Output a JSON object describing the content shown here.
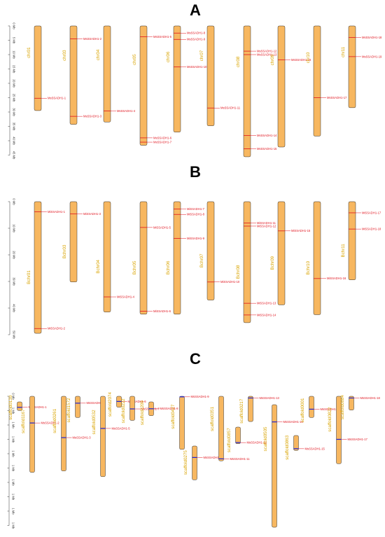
{
  "panels": [
    {
      "label": "A",
      "axis_ticks": [
        "0 Mb",
        "5 Mb",
        "10 Mb",
        "15 Mb",
        "20 Mb",
        "25 Mb",
        "30 Mb",
        "35 Mb",
        "40 Mb",
        "45 Mb"
      ],
      "axis_max_mb": 45,
      "gene_color": "#e0141e",
      "chromosomes": [
        {
          "name": "chr01",
          "length_mb": 29.5,
          "genes": [
            {
              "name": "MsSSADH1-1",
              "pos_mb": 25.2
            }
          ]
        },
        {
          "name": "chr03",
          "length_mb": 34.3,
          "genes": [
            {
              "name": "MsSSADH1-2",
              "pos_mb": 4.5
            },
            {
              "name": "MsSSADH1-3",
              "pos_mb": 31.5
            }
          ]
        },
        {
          "name": "chr04",
          "length_mb": 33.5,
          "genes": [
            {
              "name": "MsSSADH1-4",
              "pos_mb": 29.6
            }
          ]
        },
        {
          "name": "chr05",
          "length_mb": 41.6,
          "genes": [
            {
              "name": "MsSSADH1-5",
              "pos_mb": 3.8
            },
            {
              "name": "MsSSADH1-6",
              "pos_mb": 39.0
            },
            {
              "name": "MsSSADH1-7",
              "pos_mb": 40.5
            }
          ]
        },
        {
          "name": "chr06",
          "length_mb": 37.0,
          "genes": [
            {
              "name": "MsSSADH1-8",
              "pos_mb": 2.5
            },
            {
              "name": "MsSSADH1-9",
              "pos_mb": 4.7
            },
            {
              "name": "MsSSADH1-10",
              "pos_mb": 14.3
            }
          ]
        },
        {
          "name": "chr07",
          "length_mb": 34.8,
          "genes": [
            {
              "name": "MsSSADH1-11",
              "pos_mb": 28.6
            }
          ]
        },
        {
          "name": "chr08",
          "length_mb": 45.6,
          "genes": [
            {
              "name": "MsSSADH1-12",
              "pos_mb": 8.8
            },
            {
              "name": "MsSSADH1-13",
              "pos_mb": 10.0
            },
            {
              "name": "MsSSADH1-14",
              "pos_mb": 38.2
            },
            {
              "name": "MsSSADH1-15",
              "pos_mb": 42.8
            }
          ]
        },
        {
          "name": "chr09",
          "length_mb": 42.2,
          "genes": [
            {
              "name": "MsSSADH1-16",
              "pos_mb": 11.8
            }
          ]
        },
        {
          "name": "chr10",
          "length_mb": 38.4,
          "genes": [
            {
              "name": "MsSSADH1-17",
              "pos_mb": 25.0
            }
          ]
        },
        {
          "name": "chr11",
          "length_mb": 28.5,
          "genes": [
            {
              "name": "MsSSADH1-18",
              "pos_mb": 4.0
            },
            {
              "name": "MsSSADH1-19",
              "pos_mb": 10.7
            }
          ]
        }
      ]
    },
    {
      "label": "B",
      "axis_ticks": [
        "0 Mb",
        "10 Mb",
        "20 Mb",
        "30 Mb",
        "40 Mb",
        "50 Mb"
      ],
      "axis_max_mb": 50,
      "gene_color": "#e0141e",
      "chromosomes": [
        {
          "name": "Bchr01",
          "length_mb": 49.5,
          "genes": [
            {
              "name": "MiSSADH1-1",
              "pos_mb": 3.8
            },
            {
              "name": "MiSSADH1-2",
              "pos_mb": 47.7
            }
          ]
        },
        {
          "name": "Bchr03",
          "length_mb": 30.2,
          "genes": [
            {
              "name": "MiSSADH1-3",
              "pos_mb": 4.6
            }
          ]
        },
        {
          "name": "Bchr04",
          "length_mb": 41.5,
          "genes": [
            {
              "name": "MiSSADH1-4",
              "pos_mb": 35.8
            }
          ]
        },
        {
          "name": "Bchr05",
          "length_mb": 42.3,
          "genes": [
            {
              "name": "MiSSADH1-5",
              "pos_mb": 9.7
            },
            {
              "name": "MiSSADH1-6",
              "pos_mb": 41.2
            }
          ]
        },
        {
          "name": "Bchr06",
          "length_mb": 42.3,
          "genes": [
            {
              "name": "MiSSADH1-7",
              "pos_mb": 2.8
            },
            {
              "name": "MiSSADH1-8",
              "pos_mb": 4.8
            },
            {
              "name": "MiSSADH1-9",
              "pos_mb": 13.8
            }
          ]
        },
        {
          "name": "Bchr07",
          "length_mb": 37.0,
          "genes": [
            {
              "name": "MiSSADH1-10",
              "pos_mb": 30.2
            }
          ]
        },
        {
          "name": "Bchr08",
          "length_mb": 45.5,
          "genes": [
            {
              "name": "MiSSADH1-11",
              "pos_mb": 8.0
            },
            {
              "name": "MiSSADH1-12",
              "pos_mb": 9.2
            },
            {
              "name": "MiSSADH1-13",
              "pos_mb": 38.2
            },
            {
              "name": "MiSSADH1-14",
              "pos_mb": 42.6
            }
          ]
        },
        {
          "name": "Bchr09",
          "length_mb": 38.8,
          "genes": [
            {
              "name": "MiSSADH1-15",
              "pos_mb": 11.0
            }
          ]
        },
        {
          "name": "Bchr10",
          "length_mb": 42.5,
          "genes": [
            {
              "name": "MiSSADH1-16",
              "pos_mb": 28.9
            }
          ]
        },
        {
          "name": "Bchr11",
          "length_mb": 29.4,
          "genes": [
            {
              "name": "MiSSADH1-17",
              "pos_mb": 4.2
            },
            {
              "name": "MiSSADH1-18",
              "pos_mb": 10.3
            }
          ]
        }
      ]
    },
    {
      "label": "C",
      "axis_ticks": [
        "0 Mb",
        "1 Mb",
        "1 Mb",
        "1 Mb",
        "1 Mb",
        "1 Mb",
        "1 Mb",
        "1 Mb",
        "1 Mb",
        "1 Mb"
      ],
      "axis_max_mb": 45,
      "gene_color": "#1a22d6",
      "chromosomes": [
        {
          "name": "scaffold0130",
          "length_mb": 3.0,
          "genes": [
            {
              "name": "MsSSADH1-1",
              "pos_mb": 1.9
            }
          ]
        },
        {
          "name": "scaffold1167",
          "length_mb": 26.5,
          "genes": [
            {
              "name": "MsSSADH1-2",
              "pos_mb": 9.3
            }
          ]
        },
        {
          "name": "scaffold0261",
          "length_mb": 26.0,
          "genes": [
            {
              "name": "MsSSADH1-3",
              "pos_mb": 14.4
            }
          ]
        },
        {
          "name": "scaffold1572",
          "length_mb": 7.4,
          "genes": [
            {
              "name": "MsSSADH1-4",
              "pos_mb": 2.4
            }
          ]
        },
        {
          "name": "scaffold0532",
          "length_mb": 28.0,
          "genes": [
            {
              "name": "MsSSADH1-5",
              "pos_mb": 11.2
            }
          ]
        },
        {
          "name": "scaffold2074",
          "length_mb": 3.8,
          "genes": [
            {
              "name": "MsSSADH1-6",
              "pos_mb": 1.8
            }
          ]
        },
        {
          "name": "scaffold0222",
          "length_mb": 8.4,
          "genes": [
            {
              "name": "MsSSADH1-7",
              "pos_mb": 4.4
            }
          ]
        },
        {
          "name": "scaffold2209",
          "length_mb": 4.8,
          "genes": [
            {
              "name": "MsSSADH1-8",
              "pos_mb": 2.4
            }
          ]
        },
        {
          "name": "scaffold0427",
          "length_mb": 18.5,
          "genes": [
            {
              "name": "MsSSADH1-9",
              "pos_mb": 0.2
            }
          ]
        },
        {
          "name": "scaffold0275",
          "length_mb": 11.8,
          "genes": [
            {
              "name": "MsSSADH1-10",
              "pos_mb": 4.0
            }
          ]
        },
        {
          "name": "scaffold0351",
          "length_mb": 22.5,
          "genes": [
            {
              "name": "MsSSADH1-11",
              "pos_mb": 21.8
            }
          ]
        },
        {
          "name": "scaffold0857",
          "length_mb": 5.8,
          "genes": [
            {
              "name": "MsSSADH1-12",
              "pos_mb": 5.4
            }
          ]
        },
        {
          "name": "scaffold0217",
          "length_mb": 8.8,
          "genes": [
            {
              "name": "MsSSADH1-13",
              "pos_mb": 0.6
            }
          ]
        },
        {
          "name": "scaffold0505",
          "length_mb": 42.7,
          "genes": [
            {
              "name": "MsSSADH1-14",
              "pos_mb": 6.0
            }
          ]
        },
        {
          "name": "scaffold0863",
          "length_mb": 5.2,
          "genes": [
            {
              "name": "MsSSADH1-15",
              "pos_mb": 4.6
            }
          ]
        },
        {
          "name": "scaffold0001",
          "length_mb": 7.4,
          "genes": [
            {
              "name": "MsSSADH1-16",
              "pos_mb": 4.5
            }
          ]
        },
        {
          "name": "scaffold0822",
          "length_mb": 23.5,
          "genes": [
            {
              "name": "MsSSADH1-17",
              "pos_mb": 15.0
            }
          ]
        },
        {
          "name": "scaffold0884",
          "length_mb": 4.8,
          "genes": [
            {
              "name": "MsSSADH1-18",
              "pos_mb": 0.6
            }
          ]
        }
      ]
    }
  ]
}
